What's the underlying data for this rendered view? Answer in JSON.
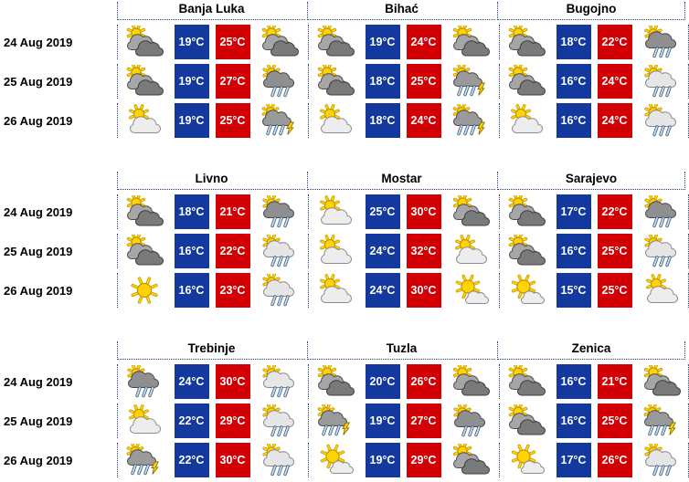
{
  "colors": {
    "min_temp_bg": "#13399E",
    "max_temp_bg": "#D20005",
    "temp_text": "#FFFFFF",
    "divider": "#1F3E7C",
    "heading_text": "#000000",
    "page_bg": "#FFFFFF"
  },
  "temp_unit": "°C",
  "dates": [
    "24 Aug 2019",
    "25 Aug 2019",
    "26 Aug 2019"
  ],
  "cities": [
    {
      "name": "Banja Luka",
      "rows": [
        {
          "morning_icon": "sun-clouds",
          "min": 19,
          "max": 25,
          "evening_icon": "sun-clouds"
        },
        {
          "morning_icon": "sun-clouds",
          "min": 19,
          "max": 27,
          "evening_icon": "sun-rain"
        },
        {
          "morning_icon": "sun-cloud",
          "min": 19,
          "max": 25,
          "evening_icon": "sun-storm"
        }
      ]
    },
    {
      "name": "Bihać",
      "rows": [
        {
          "morning_icon": "sun-clouds",
          "min": 19,
          "max": 24,
          "evening_icon": "sun-clouds"
        },
        {
          "morning_icon": "sun-clouds",
          "min": 18,
          "max": 25,
          "evening_icon": "sun-storm"
        },
        {
          "morning_icon": "sun-cloud",
          "min": 18,
          "max": 24,
          "evening_icon": "sun-storm"
        }
      ]
    },
    {
      "name": "Bugojno",
      "rows": [
        {
          "morning_icon": "sun-clouds",
          "min": 18,
          "max": 22,
          "evening_icon": "sun-rain"
        },
        {
          "morning_icon": "sun-clouds",
          "min": 16,
          "max": 24,
          "evening_icon": "sun-rain-light"
        },
        {
          "morning_icon": "sun-cloud",
          "min": 16,
          "max": 24,
          "evening_icon": "sun-rain-light"
        }
      ]
    },
    {
      "name": "Livno",
      "rows": [
        {
          "morning_icon": "sun-clouds",
          "min": 18,
          "max": 21,
          "evening_icon": "sun-rain"
        },
        {
          "morning_icon": "sun-clouds",
          "min": 16,
          "max": 22,
          "evening_icon": "sun-rain-light"
        },
        {
          "morning_icon": "sunny",
          "min": 16,
          "max": 23,
          "evening_icon": "sun-rain-light"
        }
      ]
    },
    {
      "name": "Mostar",
      "rows": [
        {
          "morning_icon": "sun-cloud",
          "min": 25,
          "max": 30,
          "evening_icon": "sun-clouds"
        },
        {
          "morning_icon": "sun-cloud",
          "min": 24,
          "max": 32,
          "evening_icon": "sun-cloud"
        },
        {
          "morning_icon": "sun-cloud",
          "min": 24,
          "max": 30,
          "evening_icon": "mostly-sunny"
        }
      ]
    },
    {
      "name": "Sarajevo",
      "rows": [
        {
          "morning_icon": "sun-clouds",
          "min": 17,
          "max": 22,
          "evening_icon": "sun-rain"
        },
        {
          "morning_icon": "sun-clouds",
          "min": 16,
          "max": 25,
          "evening_icon": "sun-rain-light"
        },
        {
          "morning_icon": "mostly-sunny",
          "min": 15,
          "max": 25,
          "evening_icon": "sun-cloud"
        }
      ]
    },
    {
      "name": "Trebinje",
      "rows": [
        {
          "morning_icon": "sun-rain",
          "min": 24,
          "max": 30,
          "evening_icon": "sun-rain-light"
        },
        {
          "morning_icon": "sun-cloud",
          "min": 22,
          "max": 29,
          "evening_icon": "sun-rain-light"
        },
        {
          "morning_icon": "sun-storm",
          "min": 22,
          "max": 30,
          "evening_icon": "sun-rain-light"
        }
      ]
    },
    {
      "name": "Tuzla",
      "rows": [
        {
          "morning_icon": "sun-clouds",
          "min": 20,
          "max": 26,
          "evening_icon": "sun-clouds"
        },
        {
          "morning_icon": "sun-storm",
          "min": 19,
          "max": 27,
          "evening_icon": "sun-rain"
        },
        {
          "morning_icon": "mostly-sunny",
          "min": 19,
          "max": 29,
          "evening_icon": "sun-clouds"
        }
      ]
    },
    {
      "name": "Zenica",
      "rows": [
        {
          "morning_icon": "sun-clouds",
          "min": 16,
          "max": 21,
          "evening_icon": "sun-clouds"
        },
        {
          "morning_icon": "sun-clouds",
          "min": 16,
          "max": 25,
          "evening_icon": "sun-storm"
        },
        {
          "morning_icon": "mostly-sunny",
          "min": 17,
          "max": 26,
          "evening_icon": "sun-rain-light"
        }
      ]
    }
  ]
}
